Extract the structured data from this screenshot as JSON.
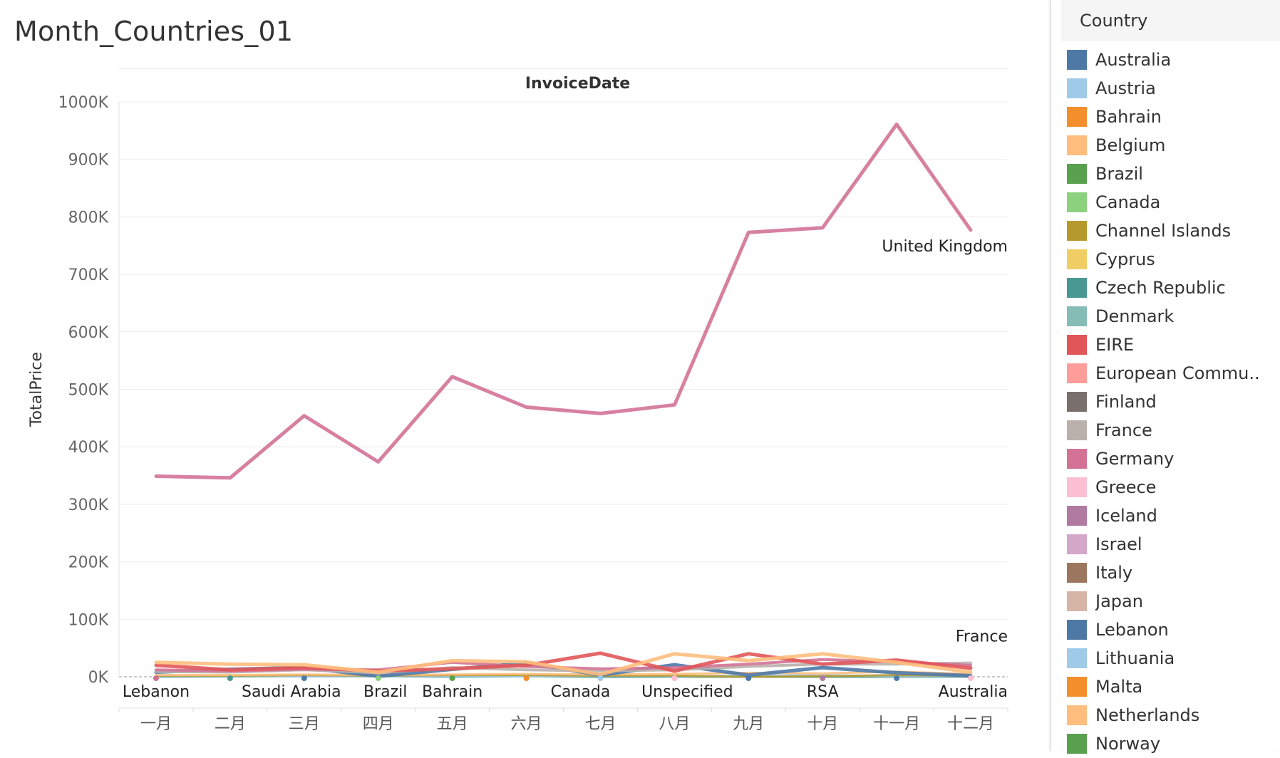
{
  "page_title": "Month_Countries_01",
  "legend": {
    "title": "Country",
    "items": [
      {
        "label": "Australia",
        "color": "#4e79a7"
      },
      {
        "label": "Austria",
        "color": "#a0cbe8"
      },
      {
        "label": "Bahrain",
        "color": "#f28e2b"
      },
      {
        "label": "Belgium",
        "color": "#ffbe7d"
      },
      {
        "label": "Brazil",
        "color": "#59a14f"
      },
      {
        "label": "Canada",
        "color": "#8cd17d"
      },
      {
        "label": "Channel Islands",
        "color": "#b6992d"
      },
      {
        "label": "Cyprus",
        "color": "#f1ce63"
      },
      {
        "label": "Czech Republic",
        "color": "#499894"
      },
      {
        "label": "Denmark",
        "color": "#86bcb6"
      },
      {
        "label": "EIRE",
        "color": "#e15759"
      },
      {
        "label": "European Commu..",
        "color": "#ff9d9a"
      },
      {
        "label": "Finland",
        "color": "#79706e"
      },
      {
        "label": "France",
        "color": "#bab0ac"
      },
      {
        "label": "Germany",
        "color": "#d37295"
      },
      {
        "label": "Greece",
        "color": "#fabfd2"
      },
      {
        "label": "Iceland",
        "color": "#b07aa1"
      },
      {
        "label": "Israel",
        "color": "#d4a6c8"
      },
      {
        "label": "Italy",
        "color": "#9d7660"
      },
      {
        "label": "Japan",
        "color": "#d7b5a6"
      },
      {
        "label": "Lebanon",
        "color": "#4e79a7"
      },
      {
        "label": "Lithuania",
        "color": "#a0cbe8"
      },
      {
        "label": "Malta",
        "color": "#f28e2b"
      },
      {
        "label": "Netherlands",
        "color": "#ffbe7d"
      },
      {
        "label": "Norway",
        "color": "#59a14f"
      }
    ]
  },
  "chart_data": {
    "type": "line",
    "title": "InvoiceDate",
    "xlabel": "",
    "ylabel": "TotalPrice",
    "ylim": [
      0,
      1000000
    ],
    "yticks": [
      0,
      100000,
      200000,
      300000,
      400000,
      500000,
      600000,
      700000,
      800000,
      900000,
      1000000
    ],
    "ytick_labels": [
      "0K",
      "100K",
      "200K",
      "300K",
      "400K",
      "500K",
      "600K",
      "700K",
      "800K",
      "900K",
      "1000K"
    ],
    "categories": [
      "一月",
      "二月",
      "三月",
      "四月",
      "五月",
      "六月",
      "七月",
      "八月",
      "九月",
      "十月",
      "十一月",
      "十二月"
    ],
    "grid": true,
    "series": [
      {
        "name": "United Kingdom",
        "color": "#d37295",
        "width": 5,
        "values": [
          349000,
          346000,
          454000,
          374000,
          522000,
          469000,
          458000,
          473000,
          773000,
          781000,
          961000,
          777000
        ],
        "label": "United Kingdom"
      },
      {
        "name": "Netherlands",
        "color": "#ffbe7d",
        "width": 5,
        "values": [
          25000,
          22000,
          21000,
          8000,
          28000,
          26000,
          4000,
          40000,
          28000,
          40000,
          25000,
          8000
        ]
      },
      {
        "name": "EIRE",
        "color": "#e15759",
        "width": 5,
        "values": [
          20000,
          12000,
          16000,
          10000,
          14000,
          20000,
          41000,
          10000,
          40000,
          22000,
          29000,
          15000
        ]
      },
      {
        "name": "Germany",
        "color": "#d37295",
        "width": 4,
        "values": [
          12000,
          10000,
          13000,
          12000,
          25000,
          18000,
          14000,
          16000,
          22000,
          30000,
          26000,
          20000
        ]
      },
      {
        "name": "France",
        "color": "#bab0ac",
        "width": 4,
        "values": [
          9000,
          8000,
          12000,
          7000,
          16000,
          12000,
          10000,
          12000,
          18000,
          22000,
          22000,
          24000
        ],
        "label": "France"
      },
      {
        "name": "Australia",
        "color": "#4e79a7",
        "width": 5,
        "values": [
          8000,
          13000,
          16000,
          1000,
          13000,
          24000,
          3000,
          21000,
          3000,
          16000,
          7000,
          2000
        ]
      },
      {
        "name": "Belgium",
        "color": "#ffbe7d",
        "width": 3,
        "values": [
          3000,
          3000,
          4000,
          3000,
          4000,
          5000,
          4000,
          5000,
          7000,
          6000,
          9000,
          5000
        ]
      },
      {
        "name": "Channel Islands",
        "color": "#b6992d",
        "width": 3,
        "values": [
          2000,
          2000,
          3000,
          2000,
          3000,
          3000,
          2000,
          2000,
          0,
          1000,
          3000,
          2000
        ]
      },
      {
        "name": "Austria",
        "color": "#a0cbe8",
        "width": 3,
        "values": [
          1000,
          2000,
          1000,
          1000,
          1000,
          1000,
          2000,
          1000,
          2000,
          3000,
          1000,
          1000
        ]
      },
      {
        "name": "Czech Republic",
        "color": "#499894",
        "width": 3,
        "values": [
          0,
          1000,
          1000,
          1000,
          0,
          1000,
          0,
          0,
          0,
          0,
          0,
          0
        ]
      }
    ],
    "bottom_labels": [
      {
        "text": "Lebanon",
        "category": "一月"
      },
      {
        "text": "Saudi Arabia",
        "category": "三月"
      },
      {
        "text": "Brazil",
        "category": "四月"
      },
      {
        "text": "Bahrain",
        "category": "五月"
      },
      {
        "text": "Canada",
        "category": "七月"
      },
      {
        "text": "Unspecified",
        "category": "八月"
      },
      {
        "text": "RSA",
        "category": "十月"
      },
      {
        "text": "Australia",
        "category": "十二月"
      }
    ]
  }
}
